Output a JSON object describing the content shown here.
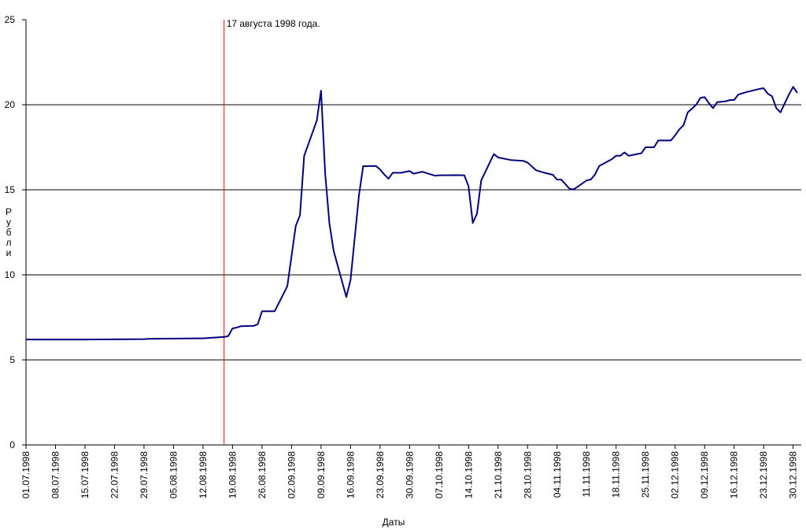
{
  "chart_data": {
    "type": "line",
    "x_label": "Даты",
    "y_label": "Рубли",
    "annotation": {
      "x": "17.08.1998",
      "text": "17 августа 1998 года.",
      "color": "#ff0000"
    },
    "xlim": [
      "01.07.1998",
      "31.12.1998"
    ],
    "xticks": [
      "01.07.1998",
      "08.07.1998",
      "15.07.1998",
      "22.07.1998",
      "29.07.1998",
      "05.08.1998",
      "12.08.1998",
      "19.08.1998",
      "26.08.1998",
      "02.09.1998",
      "09.09.1998",
      "16.09.1998",
      "23.09.1998",
      "30.09.1998",
      "07.10.1998",
      "14.10.1998",
      "21.10.1998",
      "28.10.1998",
      "04.11.1998",
      "11.11.1998",
      "18.11.1998",
      "25.11.1998",
      "02.12.1998",
      "09.12.1998",
      "16.12.1998",
      "23.12.1998",
      "30.12.1998"
    ],
    "ylim": [
      0,
      25
    ],
    "yticks": [
      0,
      5,
      10,
      15,
      20,
      25
    ],
    "grid": true,
    "x": [
      "01.07.1998",
      "15.07.1998",
      "29.07.1998",
      "30.07.1998",
      "12.08.1998",
      "14.08.1998",
      "17.08.1998",
      "18.08.1998",
      "19.08.1998",
      "20.08.1998",
      "21.08.1998",
      "24.08.1998",
      "25.08.1998",
      "26.08.1998",
      "29.08.1998",
      "01.09.1998",
      "03.09.1998",
      "04.09.1998",
      "05.09.1998",
      "08.09.1998",
      "09.09.1998",
      "10.09.1998",
      "11.09.1998",
      "12.09.1998",
      "15.09.1998",
      "16.09.1998",
      "18.09.1998",
      "19.09.1998",
      "22.09.1998",
      "23.09.1998",
      "24.09.1998",
      "25.09.1998",
      "26.09.1998",
      "28.09.1998",
      "30.09.1998",
      "01.10.1998",
      "03.10.1998",
      "06.10.1998",
      "07.10.1998",
      "11.10.1998",
      "13.10.1998",
      "14.10.1998",
      "15.10.1998",
      "16.10.1998",
      "17.10.1998",
      "20.10.1998",
      "21.10.1998",
      "24.10.1998",
      "27.10.1998",
      "28.10.1998",
      "30.10.1998",
      "01.11.1998",
      "03.11.1998",
      "04.11.1998",
      "05.11.1998",
      "07.11.1998",
      "08.11.1998",
      "09.11.1998",
      "11.11.1998",
      "12.11.1998",
      "13.11.1998",
      "14.11.1998",
      "17.11.1998",
      "18.11.1998",
      "19.11.1998",
      "20.11.1998",
      "21.11.1998",
      "23.11.1998",
      "24.11.1998",
      "25.11.1998",
      "27.11.1998",
      "28.11.1998",
      "01.12.1998",
      "02.12.1998",
      "03.12.1998",
      "04.12.1998",
      "05.12.1998",
      "07.12.1998",
      "08.12.1998",
      "09.12.1998",
      "10.12.1998",
      "11.12.1998",
      "12.12.1998",
      "14.12.1998",
      "15.12.1998",
      "16.12.1998",
      "17.12.1998",
      "19.12.1998",
      "22.12.1998",
      "23.12.1998",
      "24.12.1998",
      "25.12.1998",
      "26.12.1998",
      "27.12.1998",
      "29.12.1998",
      "30.12.1998",
      "31.12.1998"
    ],
    "series": [
      {
        "name": "Рубли",
        "color": "#000080",
        "values": [
          6.2,
          6.2,
          6.22,
          6.24,
          6.27,
          6.3,
          6.35,
          6.4,
          6.85,
          6.9,
          6.98,
          7.0,
          7.1,
          7.86,
          7.86,
          9.33,
          12.87,
          13.5,
          17.0,
          19.07,
          20.83,
          15.9,
          13.0,
          11.4,
          8.7,
          9.7,
          14.68,
          16.39,
          16.4,
          16.2,
          15.9,
          15.65,
          16.0,
          16.0,
          16.1,
          15.95,
          16.06,
          15.83,
          15.85,
          15.86,
          15.85,
          15.2,
          13.05,
          13.6,
          15.55,
          17.1,
          16.9,
          16.75,
          16.7,
          16.6,
          16.15,
          16.0,
          15.88,
          15.6,
          15.6,
          15.05,
          15.03,
          15.2,
          15.55,
          15.6,
          15.9,
          16.4,
          16.8,
          17.0,
          17.0,
          17.2,
          17.0,
          17.1,
          17.15,
          17.5,
          17.5,
          17.9,
          17.9,
          18.2,
          18.55,
          18.8,
          19.55,
          20.0,
          20.4,
          20.45,
          20.1,
          19.8,
          20.15,
          20.2,
          20.28,
          20.28,
          20.6,
          20.75,
          20.93,
          20.97,
          20.65,
          20.5,
          19.8,
          19.55,
          20.6,
          21.05,
          20.7
        ]
      }
    ]
  }
}
